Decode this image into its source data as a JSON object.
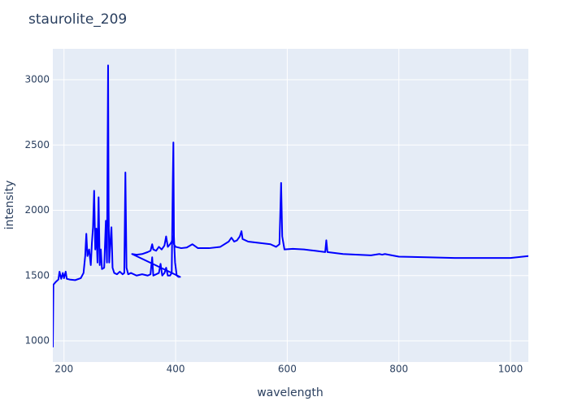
{
  "chart_data": {
    "type": "line",
    "title": "staurolite_209",
    "x_label": "wavelength",
    "y_label": "intensity",
    "color": "#0000ff",
    "grid": true,
    "xlim": [
      180,
      1032
    ],
    "ylim": [
      838,
      3237
    ],
    "xticks": [
      200,
      400,
      600,
      800,
      1000
    ],
    "yticks": [
      1000,
      1500,
      2000,
      2500,
      3000
    ],
    "x": [
      180,
      181,
      185,
      190,
      192,
      195,
      198,
      200,
      203,
      205,
      210,
      220,
      230,
      235,
      238,
      240,
      242,
      245,
      248,
      250,
      252,
      254,
      256,
      258,
      260,
      262,
      264,
      266,
      268,
      272,
      275,
      277,
      279,
      280,
      281,
      283,
      285,
      287,
      290,
      295,
      300,
      305,
      308,
      310,
      312,
      315,
      320,
      330,
      340,
      350,
      355,
      358,
      360,
      365,
      370,
      373,
      376,
      380,
      383,
      386,
      390,
      393,
      395,
      396,
      397,
      399,
      402,
      405,
      408,
      322,
      330,
      340,
      350,
      355,
      358,
      360,
      365,
      370,
      375,
      380,
      383,
      386,
      390,
      393,
      395,
      397,
      400,
      410,
      420,
      430,
      440,
      460,
      480,
      495,
      500,
      505,
      510,
      515,
      518,
      520,
      530,
      550,
      570,
      580,
      586,
      589,
      591,
      595,
      610,
      630,
      650,
      668,
      670,
      672,
      700,
      750,
      765,
      770,
      775,
      800,
      850,
      900,
      950,
      1000,
      1032
    ],
    "values": [
      950,
      1430,
      1450,
      1470,
      1530,
      1475,
      1520,
      1480,
      1530,
      1475,
      1470,
      1465,
      1480,
      1520,
      1650,
      1820,
      1650,
      1700,
      1580,
      1750,
      1870,
      2150,
      1700,
      1860,
      1600,
      2100,
      1580,
      1700,
      1550,
      1560,
      1920,
      1600,
      3110,
      2000,
      1600,
      1750,
      1870,
      1560,
      1520,
      1510,
      1530,
      1510,
      1520,
      2290,
      1560,
      1510,
      1520,
      1500,
      1510,
      1500,
      1510,
      1640,
      1500,
      1510,
      1520,
      1590,
      1500,
      1520,
      1560,
      1500,
      1500,
      1520,
      2230,
      2520,
      1800,
      1600,
      1500,
      1490,
      1490,
      1665,
      1660,
      1665,
      1680,
      1690,
      1740,
      1700,
      1690,
      1720,
      1700,
      1730,
      1800,
      1720,
      1740,
      1760,
      1800,
      1740,
      1720,
      1710,
      1715,
      1740,
      1710,
      1710,
      1720,
      1760,
      1790,
      1760,
      1770,
      1800,
      1840,
      1780,
      1760,
      1750,
      1740,
      1720,
      1740,
      2210,
      1800,
      1700,
      1705,
      1700,
      1690,
      1680,
      1770,
      1680,
      1665,
      1655,
      1665,
      1660,
      1665,
      1645,
      1640,
      1635,
      1635,
      1635,
      1650
    ]
  }
}
